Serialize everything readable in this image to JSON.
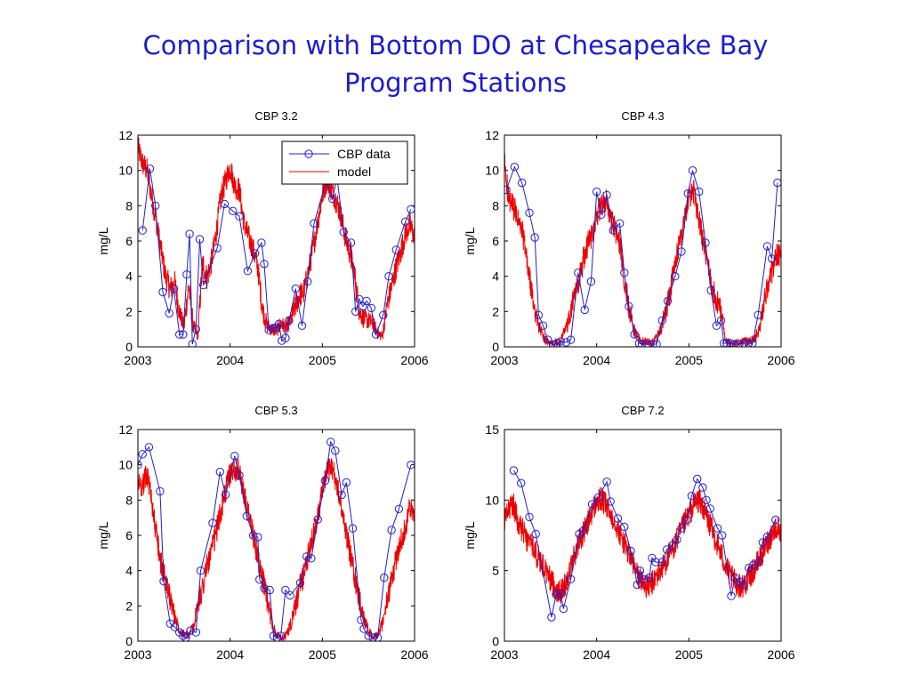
{
  "slide": {
    "title_line1": "Comparison with Bottom DO at Chesapeake Bay",
    "title_line2": "Program Stations"
  },
  "colors": {
    "title": "#1c1ccf",
    "cbp_data": "#2020d0",
    "model": "#ee0000"
  },
  "chart_data": [
    {
      "type": "line",
      "title": "CBP 3.2",
      "xlabel": "",
      "ylabel": "mg/L",
      "xlim": [
        2003,
        2006
      ],
      "ylim": [
        0,
        12
      ],
      "xticks": [
        2003,
        2004,
        2005,
        2006
      ],
      "yticks": [
        0,
        2,
        4,
        6,
        8,
        10,
        12
      ],
      "legend": {
        "placement": "top-right",
        "entries": [
          "CBP data",
          "model"
        ]
      },
      "series": [
        {
          "name": "CBP data",
          "marker": "circle",
          "x": [
            2003.05,
            2003.13,
            2003.19,
            2003.27,
            2003.34,
            2003.39,
            2003.45,
            2003.49,
            2003.53,
            2003.56,
            2003.59,
            2003.63,
            2003.67,
            2003.71,
            2003.86,
            2003.94,
            2004.03,
            2004.1,
            2004.19,
            2004.27,
            2004.34,
            2004.37,
            2004.42,
            2004.46,
            2004.49,
            2004.53,
            2004.56,
            2004.6,
            2004.64,
            2004.71,
            2004.78,
            2004.84,
            2004.91,
            2005.04,
            2005.11,
            2005.16,
            2005.23,
            2005.31,
            2005.36,
            2005.4,
            2005.44,
            2005.48,
            2005.53,
            2005.58,
            2005.66,
            2005.72,
            2005.8,
            2005.9,
            2005.96
          ],
          "y": [
            6.6,
            10.1,
            8.0,
            3.1,
            1.9,
            3.3,
            0.7,
            0.7,
            4.1,
            6.4,
            0.15,
            1.0,
            6.1,
            3.5,
            5.6,
            8.1,
            7.7,
            7.4,
            4.3,
            5.3,
            5.9,
            4.7,
            0.95,
            1.05,
            1.1,
            1.3,
            0.35,
            0.5,
            1.5,
            3.3,
            1.2,
            3.7,
            7.0,
            9.4,
            8.4,
            9.6,
            6.5,
            5.9,
            2.0,
            2.7,
            2.3,
            2.6,
            2.2,
            0.7,
            1.8,
            4.0,
            5.5,
            7.1,
            7.8
          ]
        },
        {
          "name": "model",
          "marker": "none",
          "x": [
            2003.0,
            2003.05,
            2003.1,
            2003.15,
            2003.2,
            2003.25,
            2003.3,
            2003.35,
            2003.4,
            2003.45,
            2003.5,
            2003.55,
            2003.6,
            2003.65,
            2003.7,
            2003.75,
            2003.8,
            2003.85,
            2003.9,
            2003.95,
            2004.0,
            2004.05,
            2004.1,
            2004.15,
            2004.2,
            2004.25,
            2004.3,
            2004.35,
            2004.4,
            2004.45,
            2004.5,
            2004.55,
            2004.6,
            2004.65,
            2004.7,
            2004.75,
            2004.8,
            2004.85,
            2004.9,
            2004.95,
            2005.0,
            2005.05,
            2005.1,
            2005.15,
            2005.2,
            2005.25,
            2005.3,
            2005.35,
            2005.4,
            2005.45,
            2005.5,
            2005.55,
            2005.6,
            2005.65,
            2005.7,
            2005.75,
            2005.8,
            2005.85,
            2005.9,
            2005.95,
            2006.0
          ],
          "y": [
            11.3,
            10.4,
            10.0,
            8.5,
            7.1,
            5.5,
            4.0,
            3.3,
            3.6,
            2.0,
            1.1,
            3.5,
            1.2,
            0.6,
            4.8,
            3.9,
            4.9,
            6.5,
            8.5,
            9.4,
            10.2,
            9.1,
            8.9,
            7.0,
            6.2,
            5.5,
            4.5,
            2.2,
            1.2,
            1.0,
            0.9,
            1.3,
            1.1,
            1.4,
            2.2,
            2.9,
            3.1,
            4.3,
            5.6,
            7.1,
            8.6,
            9.5,
            8.9,
            8.3,
            7.5,
            6.2,
            5.3,
            4.1,
            2.0,
            1.6,
            1.5,
            1.3,
            0.8,
            0.6,
            2.3,
            3.4,
            4.5,
            5.4,
            6.4,
            6.9,
            6.2
          ]
        }
      ]
    },
    {
      "type": "line",
      "title": "CBP 4.3",
      "xlabel": "",
      "ylabel": "mg/L",
      "xlim": [
        2003,
        2006
      ],
      "ylim": [
        0,
        12
      ],
      "xticks": [
        2003,
        2004,
        2005,
        2006
      ],
      "yticks": [
        0,
        2,
        4,
        6,
        8,
        10,
        12
      ],
      "series": [
        {
          "name": "CBP data",
          "marker": "circle",
          "x": [
            2003.02,
            2003.11,
            2003.19,
            2003.27,
            2003.33,
            2003.37,
            2003.42,
            2003.47,
            2003.53,
            2003.57,
            2003.61,
            2003.67,
            2003.72,
            2003.8,
            2003.87,
            2003.94,
            2004.0,
            2004.05,
            2004.11,
            2004.18,
            2004.25,
            2004.3,
            2004.35,
            2004.41,
            2004.46,
            2004.49,
            2004.55,
            2004.61,
            2004.65,
            2004.71,
            2004.77,
            2004.85,
            2004.92,
            2004.99,
            2005.04,
            2005.11,
            2005.18,
            2005.24,
            2005.3,
            2005.35,
            2005.38,
            2005.41,
            2005.45,
            2005.49,
            2005.54,
            2005.6,
            2005.65,
            2005.69,
            2005.75,
            2005.85,
            2005.9,
            2005.96
          ],
          "y": [
            8.9,
            10.2,
            9.3,
            7.6,
            6.2,
            1.8,
            1.2,
            0.4,
            0.1,
            0.2,
            0.3,
            0.25,
            0.4,
            4.2,
            2.1,
            3.7,
            8.8,
            7.5,
            8.6,
            6.6,
            7.0,
            4.2,
            2.3,
            0.7,
            0.2,
            0.15,
            0.15,
            0.15,
            0.15,
            1.5,
            2.6,
            4.0,
            5.4,
            8.7,
            10.0,
            8.8,
            5.9,
            3.2,
            1.2,
            1.5,
            0.2,
            0.2,
            0.2,
            0.15,
            0.15,
            0.2,
            0.2,
            0.2,
            1.8,
            5.7,
            5.0,
            9.3
          ]
        },
        {
          "name": "model",
          "marker": "none",
          "x": [
            2003.0,
            2003.05,
            2003.1,
            2003.15,
            2003.2,
            2003.25,
            2003.3,
            2003.35,
            2003.4,
            2003.45,
            2003.5,
            2003.55,
            2003.6,
            2003.65,
            2003.7,
            2003.75,
            2003.8,
            2003.85,
            2003.9,
            2003.95,
            2004.0,
            2004.05,
            2004.1,
            2004.15,
            2004.2,
            2004.25,
            2004.3,
            2004.35,
            2004.4,
            2004.45,
            2004.5,
            2004.55,
            2004.6,
            2004.65,
            2004.7,
            2004.75,
            2004.8,
            2004.85,
            2004.9,
            2004.95,
            2005.0,
            2005.05,
            2005.1,
            2005.15,
            2005.2,
            2005.25,
            2005.3,
            2005.35,
            2005.4,
            2005.45,
            2005.5,
            2005.55,
            2005.6,
            2005.65,
            2005.7,
            2005.75,
            2005.8,
            2005.85,
            2005.9,
            2005.95,
            2006.0
          ],
          "y": [
            10.5,
            8.2,
            7.9,
            7.1,
            6.4,
            4.6,
            2.9,
            1.6,
            0.8,
            0.3,
            0.2,
            0.2,
            0.3,
            0.8,
            1.5,
            2.7,
            3.6,
            4.8,
            5.8,
            6.4,
            7.5,
            7.9,
            8.3,
            7.3,
            6.6,
            5.9,
            3.9,
            2.3,
            1.0,
            0.5,
            0.3,
            0.3,
            0.2,
            0.5,
            1.0,
            2.1,
            3.2,
            4.6,
            6.0,
            7.2,
            8.5,
            8.8,
            7.6,
            6.0,
            4.8,
            3.4,
            2.7,
            2.0,
            0.4,
            0.2,
            0.2,
            0.2,
            0.3,
            0.3,
            0.4,
            0.8,
            2.0,
            3.4,
            4.3,
            5.3,
            5.2
          ]
        }
      ]
    },
    {
      "type": "line",
      "title": "CBP 5.3",
      "xlabel": "",
      "ylabel": "mg/L",
      "xlim": [
        2003,
        2006
      ],
      "ylim": [
        0,
        12
      ],
      "xticks": [
        2003,
        2004,
        2005,
        2006
      ],
      "yticks": [
        0,
        2,
        4,
        6,
        8,
        10,
        12
      ],
      "series": [
        {
          "name": "CBP data",
          "marker": "circle",
          "x": [
            2003.0,
            2003.05,
            2003.12,
            2003.24,
            2003.28,
            2003.35,
            2003.4,
            2003.45,
            2003.49,
            2003.52,
            2003.57,
            2003.63,
            2003.68,
            2003.81,
            2003.89,
            2003.95,
            2004.05,
            2004.1,
            2004.18,
            2004.25,
            2004.3,
            2004.32,
            2004.37,
            2004.43,
            2004.47,
            2004.51,
            2004.55,
            2004.6,
            2004.65,
            2004.76,
            2004.83,
            2004.88,
            2004.95,
            2005.03,
            2005.09,
            2005.14,
            2005.21,
            2005.26,
            2005.33,
            2005.42,
            2005.45,
            2005.5,
            2005.55,
            2005.6,
            2005.67,
            2005.75,
            2005.83,
            2005.96
          ],
          "y": [
            10.0,
            10.6,
            11.0,
            8.5,
            3.4,
            1.0,
            0.8,
            0.5,
            0.3,
            0.2,
            0.6,
            0.5,
            4.0,
            6.7,
            9.6,
            8.3,
            10.5,
            9.4,
            7.1,
            6.0,
            5.9,
            3.5,
            3.0,
            2.9,
            0.3,
            0.2,
            0.3,
            2.9,
            2.6,
            3.3,
            4.8,
            4.7,
            6.9,
            9.1,
            11.3,
            10.8,
            8.3,
            9.0,
            6.4,
            1.2,
            0.7,
            0.3,
            0.2,
            0.2,
            3.6,
            6.3,
            7.5,
            10.0
          ]
        },
        {
          "name": "model",
          "marker": "none",
          "x": [
            2003.0,
            2003.05,
            2003.1,
            2003.15,
            2003.2,
            2003.25,
            2003.3,
            2003.35,
            2003.4,
            2003.45,
            2003.5,
            2003.55,
            2003.6,
            2003.65,
            2003.7,
            2003.75,
            2003.8,
            2003.85,
            2003.9,
            2003.95,
            2004.0,
            2004.05,
            2004.1,
            2004.15,
            2004.2,
            2004.25,
            2004.3,
            2004.35,
            2004.4,
            2004.45,
            2004.5,
            2004.55,
            2004.6,
            2004.65,
            2004.7,
            2004.75,
            2004.8,
            2004.85,
            2004.9,
            2004.95,
            2005.0,
            2005.05,
            2005.1,
            2005.15,
            2005.2,
            2005.25,
            2005.3,
            2005.35,
            2005.4,
            2005.45,
            2005.5,
            2005.55,
            2005.6,
            2005.65,
            2005.7,
            2005.75,
            2005.8,
            2005.85,
            2005.9,
            2005.95,
            2006.0
          ],
          "y": [
            9.0,
            8.8,
            9.5,
            8.0,
            6.0,
            4.4,
            3.5,
            2.4,
            1.4,
            0.7,
            0.4,
            0.3,
            0.8,
            2.0,
            3.1,
            4.3,
            5.1,
            6.2,
            7.4,
            8.5,
            9.5,
            9.8,
            9.6,
            8.3,
            7.1,
            6.1,
            4.8,
            3.6,
            2.3,
            1.1,
            0.4,
            0.2,
            0.3,
            0.8,
            1.8,
            2.9,
            3.9,
            4.9,
            5.9,
            7.2,
            8.4,
            9.6,
            10.0,
            9.0,
            7.8,
            6.4,
            5.0,
            3.7,
            2.4,
            1.3,
            0.6,
            0.2,
            0.3,
            1.0,
            2.2,
            3.4,
            4.7,
            5.6,
            6.5,
            7.6,
            6.9
          ]
        }
      ]
    },
    {
      "type": "line",
      "title": "CBP 7.2",
      "xlabel": "",
      "ylabel": "mg/L",
      "xlim": [
        2003,
        2006
      ],
      "ylim": [
        0,
        15
      ],
      "xticks": [
        2003,
        2004,
        2005,
        2006
      ],
      "yticks": [
        0,
        5,
        10,
        15
      ],
      "series": [
        {
          "name": "CBP data",
          "marker": "circle",
          "x": [
            2003.1,
            2003.18,
            2003.27,
            2003.34,
            2003.51,
            2003.56,
            2003.61,
            2003.64,
            2003.72,
            2003.81,
            2003.85,
            2003.95,
            2004.02,
            2004.11,
            2004.15,
            2004.23,
            2004.3,
            2004.37,
            2004.44,
            2004.47,
            2004.51,
            2004.57,
            2004.6,
            2004.64,
            2004.71,
            2004.76,
            2004.82,
            2004.87,
            2004.92,
            2004.98,
            2005.03,
            2005.09,
            2005.15,
            2005.19,
            2005.23,
            2005.31,
            2005.36,
            2005.46,
            2005.5,
            2005.55,
            2005.59,
            2005.65,
            2005.7,
            2005.76,
            2005.8,
            2005.85,
            2005.94
          ],
          "y": [
            12.1,
            11.2,
            8.8,
            7.6,
            1.7,
            3.3,
            3.4,
            2.3,
            4.4,
            7.6,
            7.8,
            9.7,
            10.2,
            11.3,
            9.9,
            8.7,
            8.1,
            6.4,
            4.0,
            5.0,
            4.4,
            4.5,
            5.9,
            5.6,
            5.6,
            6.5,
            6.8,
            7.2,
            8.0,
            8.6,
            10.3,
            11.5,
            10.9,
            10.0,
            9.4,
            8.0,
            7.5,
            3.2,
            4.5,
            4.2,
            4.0,
            5.2,
            5.4,
            5.6,
            7.0,
            7.4,
            8.6
          ]
        },
        {
          "name": "model",
          "marker": "none",
          "x": [
            2003.0,
            2003.05,
            2003.1,
            2003.15,
            2003.2,
            2003.25,
            2003.3,
            2003.35,
            2003.4,
            2003.45,
            2003.5,
            2003.55,
            2003.6,
            2003.65,
            2003.7,
            2003.75,
            2003.8,
            2003.85,
            2003.9,
            2003.95,
            2004.0,
            2004.05,
            2004.1,
            2004.15,
            2004.2,
            2004.25,
            2004.3,
            2004.35,
            2004.4,
            2004.45,
            2004.5,
            2004.55,
            2004.6,
            2004.65,
            2004.7,
            2004.75,
            2004.8,
            2004.85,
            2004.9,
            2004.95,
            2005.0,
            2005.05,
            2005.1,
            2005.15,
            2005.2,
            2005.25,
            2005.3,
            2005.35,
            2005.4,
            2005.45,
            2005.5,
            2005.55,
            2005.6,
            2005.65,
            2005.7,
            2005.75,
            2005.8,
            2005.85,
            2005.9,
            2005.95,
            2006.0
          ],
          "y": [
            8.5,
            9.3,
            9.7,
            8.4,
            7.8,
            7.1,
            6.8,
            6.1,
            5.6,
            4.9,
            4.4,
            3.8,
            3.4,
            3.9,
            4.8,
            5.9,
            6.9,
            7.6,
            8.3,
            9.2,
            9.8,
            10.1,
            9.6,
            9.0,
            8.5,
            7.6,
            6.9,
            6.2,
            5.4,
            4.6,
            4.2,
            3.8,
            4.1,
            4.6,
            5.1,
            5.6,
            6.2,
            6.9,
            7.6,
            8.3,
            9.0,
            9.6,
            10.0,
            9.5,
            8.7,
            7.9,
            7.0,
            6.2,
            5.3,
            4.6,
            4.2,
            3.9,
            4.0,
            4.5,
            5.0,
            5.6,
            6.3,
            7.0,
            7.6,
            8.1,
            7.8
          ]
        }
      ]
    }
  ]
}
